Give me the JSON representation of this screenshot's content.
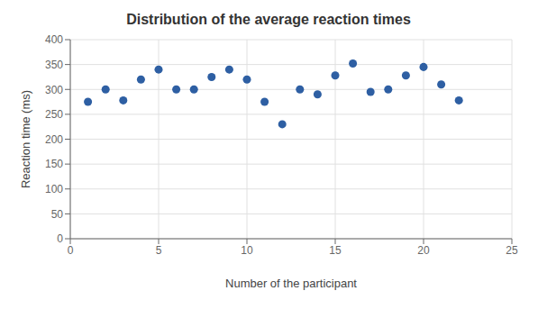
{
  "chart_data": {
    "type": "scatter",
    "title": "Distribution of the average reaction times",
    "xlabel": "Number of the participant",
    "ylabel": "Reaction time (ms)",
    "x": [
      1,
      2,
      3,
      4,
      5,
      6,
      7,
      8,
      9,
      10,
      11,
      12,
      13,
      14,
      15,
      16,
      17,
      18,
      19,
      20,
      21,
      22
    ],
    "values": [
      275,
      300,
      278,
      320,
      340,
      300,
      300,
      325,
      340,
      320,
      275,
      230,
      300,
      290,
      328,
      352,
      295,
      300,
      328,
      345,
      310,
      278
    ],
    "color": "#2e5fa3",
    "xlim": [
      0,
      25
    ],
    "ylim": [
      0,
      400
    ],
    "xticks": [
      0,
      5,
      10,
      15,
      20,
      25
    ],
    "yticks": [
      0,
      50,
      100,
      150,
      200,
      250,
      300,
      350,
      400
    ],
    "grid": true
  }
}
